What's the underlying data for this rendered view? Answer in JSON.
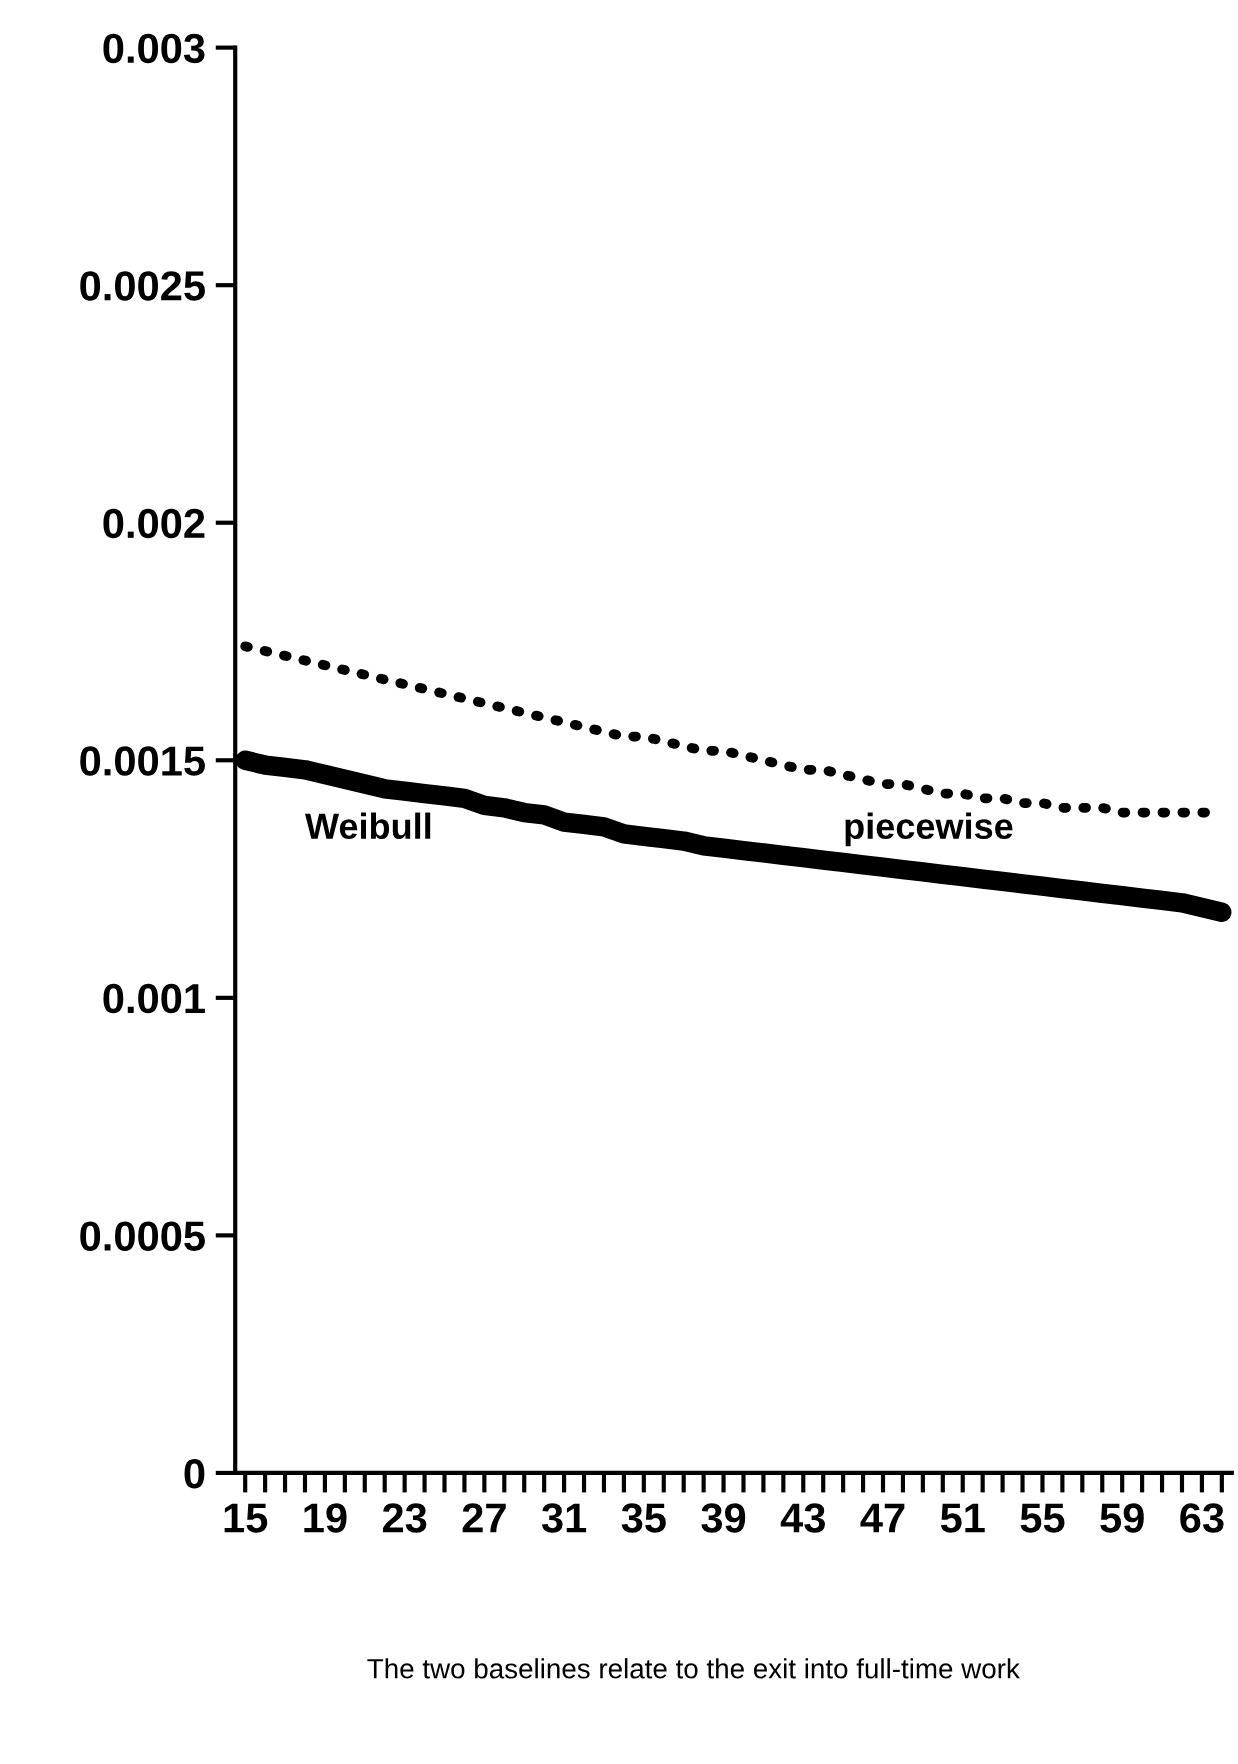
{
  "chart_data": {
    "type": "line",
    "categories": [
      "15",
      null,
      null,
      null,
      "19",
      null,
      null,
      null,
      "23",
      null,
      null,
      null,
      "27",
      null,
      null,
      null,
      "31",
      null,
      null,
      null,
      "35",
      null,
      null,
      null,
      "39",
      null,
      null,
      null,
      "43",
      null,
      null,
      null,
      "47",
      null,
      null,
      null,
      "51",
      null,
      null,
      null,
      "55",
      null,
      null,
      null,
      "59",
      null,
      null,
      null,
      "63",
      null
    ],
    "series": [
      {
        "name": "piecewise",
        "color": "#000000",
        "line_style": "dotted",
        "values": [
          0.00174,
          0.00173,
          0.00172,
          0.00171,
          0.0017,
          0.00169,
          0.00168,
          0.00167,
          0.00166,
          0.00165,
          0.00164,
          0.00163,
          0.00162,
          0.00161,
          0.0016,
          0.00159,
          0.00158,
          0.00157,
          0.00156,
          0.00155,
          0.00155,
          0.00154,
          0.00153,
          0.00152,
          0.00152,
          0.00151,
          0.0015,
          0.00149,
          0.00148,
          0.00148,
          0.00147,
          0.00146,
          0.00145,
          0.00145,
          0.00144,
          0.00143,
          0.00143,
          0.00142,
          0.00142,
          0.00141,
          0.00141,
          0.0014,
          0.0014,
          0.0014,
          0.00139,
          0.00139,
          0.00139,
          0.00139,
          0.00139,
          0.00139
        ]
      },
      {
        "name": "Weibull",
        "color": "#000000",
        "line_style": "solid",
        "values": [
          0.0015,
          0.00149,
          0.001485,
          0.00148,
          0.00147,
          0.00146,
          0.00145,
          0.00144,
          0.001435,
          0.00143,
          0.001425,
          0.00142,
          0.001405,
          0.0014,
          0.00139,
          0.001385,
          0.00137,
          0.001365,
          0.00136,
          0.001345,
          0.00134,
          0.001335,
          0.00133,
          0.00132,
          0.001315,
          0.00131,
          0.001305,
          0.0013,
          0.001295,
          0.00129,
          0.001285,
          0.00128,
          0.001275,
          0.00127,
          0.001265,
          0.00126,
          0.001255,
          0.00125,
          0.001245,
          0.00124,
          0.001235,
          0.00123,
          0.001225,
          0.00122,
          0.001215,
          0.00121,
          0.001205,
          0.0012,
          0.00119,
          0.00118
        ]
      }
    ],
    "ylim": [
      0,
      0.003
    ],
    "yticks": [
      0,
      0.0005,
      0.001,
      0.0015,
      0.002,
      0.0025,
      0.003
    ],
    "grid": false,
    "legend": false,
    "annotations": [
      "The two baselines relate to the exit into full-time work"
    ]
  }
}
